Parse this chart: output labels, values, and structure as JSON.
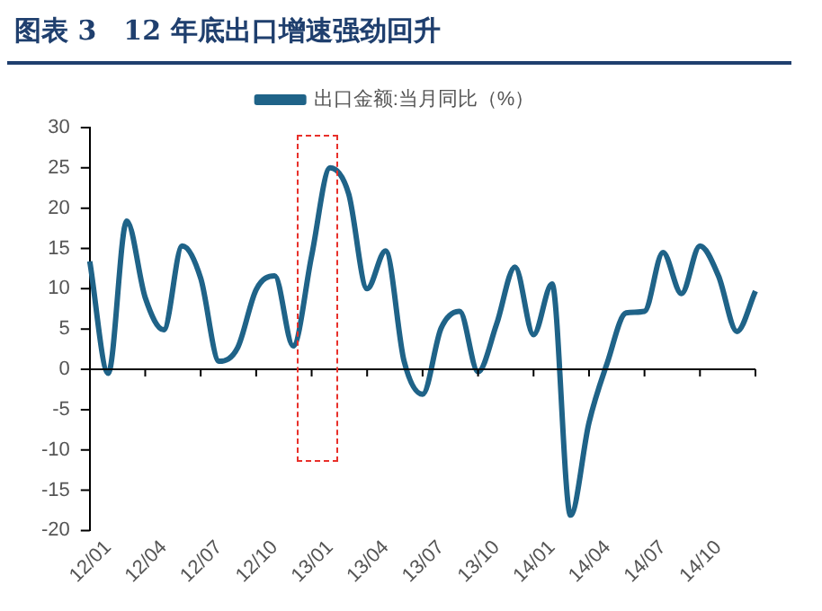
{
  "chart_data": {
    "type": "line",
    "title": "图表 3　12 年底出口增速强劲回升",
    "categories": [
      null,
      "12/01",
      null,
      null,
      "12/04",
      null,
      null,
      "12/07",
      null,
      null,
      "12/10",
      null,
      null,
      "13/01",
      null,
      null,
      "13/04",
      null,
      null,
      "13/07",
      null,
      null,
      "13/10",
      null,
      null,
      "14/01",
      null,
      null,
      "14/04",
      null,
      null,
      "14/07",
      null,
      null,
      "14/10",
      null,
      null
    ],
    "series": [
      {
        "name": "出口金额:当月同比（%）",
        "color": "#1f6388",
        "values": [
          13.4,
          -0.5,
          18.4,
          8.9,
          4.9,
          15.3,
          11.3,
          1.0,
          2.7,
          9.9,
          11.6,
          2.9,
          14.1,
          25.0,
          21.8,
          10.0,
          14.7,
          1.0,
          -3.1,
          5.1,
          7.2,
          -0.3,
          5.6,
          12.7,
          4.3,
          10.6,
          -18.1,
          -6.6,
          0.9,
          7.0,
          7.2,
          14.5,
          9.4,
          15.3,
          11.6,
          4.7,
          9.7
        ]
      }
    ],
    "ylim": [
      -20,
      30
    ],
    "yticks": [
      -20,
      -15,
      -10,
      -5,
      0,
      5,
      10,
      15,
      20,
      25,
      30
    ],
    "ref_lines": [
      {
        "axis": "y",
        "value": 0,
        "color": "#000000"
      }
    ],
    "grid": false,
    "legend": "top",
    "marker": "none",
    "line_style": "solid"
  }
}
